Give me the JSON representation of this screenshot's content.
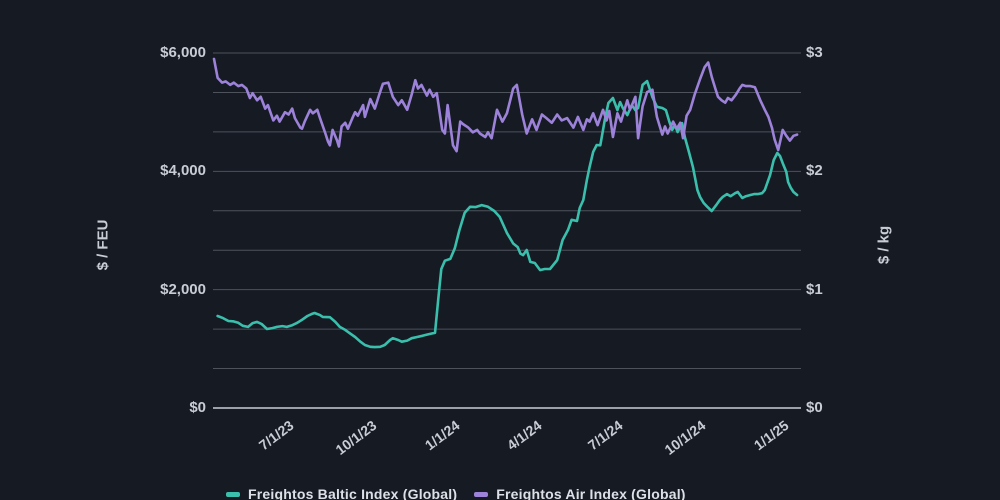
{
  "chart": {
    "background": "#161A23",
    "text_color": "#C8CDD5",
    "gridline_color": "rgba(195,202,212,0.32)",
    "axis_line_color": "#9AA1AA",
    "left_axis": {
      "title": "$ / FEU",
      "max": 6000,
      "ticks": [
        {
          "value": 0,
          "label": "$0"
        },
        {
          "value": 2000,
          "label": "$2,000"
        },
        {
          "value": 4000,
          "label": "$4,000"
        },
        {
          "value": 6000,
          "label": "$6,000"
        }
      ]
    },
    "right_axis": {
      "title": "$ / kg",
      "max": 3,
      "ticks": [
        {
          "value": 0,
          "label": "$0"
        },
        {
          "value": 1,
          "label": "$1"
        },
        {
          "value": 2,
          "label": "$2"
        },
        {
          "value": 3,
          "label": "$3"
        }
      ]
    },
    "x_axis": {
      "start_date": "2023-04-07",
      "end_date": "2025-01-16",
      "span_days": 650,
      "ticks": [
        {
          "day": 85,
          "label": "7/1/23"
        },
        {
          "day": 177,
          "label": "10/1/23"
        },
        {
          "day": 269,
          "label": "1/1/24"
        },
        {
          "day": 360,
          "label": "4/1/24"
        },
        {
          "day": 451,
          "label": "7/1/24"
        },
        {
          "day": 543,
          "label": "10/1/24"
        },
        {
          "day": 635,
          "label": "1/1/25"
        }
      ]
    }
  },
  "chart_data": {
    "type": "line",
    "x_unit": "days_since_2023-04-07",
    "grid": "horizontal-only",
    "legend_position": "bottom",
    "series": [
      {
        "name": "Freightos Baltic Index (Global)",
        "color": "#3BBFAD",
        "axis": "left",
        "unit": "$/FEU",
        "points": [
          [
            4,
            1555
          ],
          [
            10,
            1520
          ],
          [
            16,
            1470
          ],
          [
            21,
            1465
          ],
          [
            27,
            1440
          ],
          [
            32,
            1390
          ],
          [
            38,
            1370
          ],
          [
            43,
            1435
          ],
          [
            48,
            1455
          ],
          [
            53,
            1420
          ],
          [
            59,
            1335
          ],
          [
            65,
            1350
          ],
          [
            70,
            1370
          ],
          [
            76,
            1385
          ],
          [
            81,
            1370
          ],
          [
            87,
            1400
          ],
          [
            92,
            1435
          ],
          [
            98,
            1490
          ],
          [
            104,
            1555
          ],
          [
            109,
            1590
          ],
          [
            112,
            1605
          ],
          [
            118,
            1570
          ],
          [
            121,
            1540
          ],
          [
            129,
            1535
          ],
          [
            135,
            1455
          ],
          [
            140,
            1370
          ],
          [
            146,
            1320
          ],
          [
            151,
            1265
          ],
          [
            157,
            1200
          ],
          [
            163,
            1120
          ],
          [
            168,
            1065
          ],
          [
            174,
            1035
          ],
          [
            179,
            1030
          ],
          [
            185,
            1035
          ],
          [
            190,
            1065
          ],
          [
            196,
            1150
          ],
          [
            199,
            1180
          ],
          [
            205,
            1150
          ],
          [
            209,
            1120
          ],
          [
            215,
            1140
          ],
          [
            220,
            1180
          ],
          [
            226,
            1200
          ],
          [
            232,
            1220
          ],
          [
            237,
            1240
          ],
          [
            243,
            1260
          ],
          [
            246,
            1270
          ],
          [
            250,
            1900
          ],
          [
            253,
            2350
          ],
          [
            257,
            2490
          ],
          [
            263,
            2520
          ],
          [
            268,
            2700
          ],
          [
            273,
            3000
          ],
          [
            279,
            3300
          ],
          [
            285,
            3400
          ],
          [
            291,
            3395
          ],
          [
            298,
            3430
          ],
          [
            305,
            3400
          ],
          [
            312,
            3330
          ],
          [
            318,
            3230
          ],
          [
            326,
            2960
          ],
          [
            333,
            2780
          ],
          [
            338,
            2720
          ],
          [
            341,
            2610
          ],
          [
            344,
            2585
          ],
          [
            348,
            2670
          ],
          [
            352,
            2470
          ],
          [
            357,
            2450
          ],
          [
            363,
            2330
          ],
          [
            368,
            2350
          ],
          [
            374,
            2350
          ],
          [
            382,
            2500
          ],
          [
            385,
            2670
          ],
          [
            388,
            2840
          ],
          [
            394,
            3010
          ],
          [
            398,
            3180
          ],
          [
            404,
            3160
          ],
          [
            407,
            3380
          ],
          [
            411,
            3515
          ],
          [
            415,
            3855
          ],
          [
            418,
            4075
          ],
          [
            422,
            4330
          ],
          [
            426,
            4445
          ],
          [
            430,
            4440
          ],
          [
            435,
            4870
          ],
          [
            439,
            5155
          ],
          [
            444,
            5240
          ],
          [
            449,
            5035
          ],
          [
            452,
            5170
          ],
          [
            455,
            5070
          ],
          [
            460,
            4950
          ],
          [
            465,
            5120
          ],
          [
            469,
            5035
          ],
          [
            472,
            5070
          ],
          [
            477,
            5460
          ],
          [
            482,
            5525
          ],
          [
            488,
            5255
          ],
          [
            493,
            5090
          ],
          [
            499,
            5070
          ],
          [
            503,
            5035
          ],
          [
            507,
            4830
          ],
          [
            510,
            4700
          ],
          [
            513,
            4785
          ],
          [
            516,
            4665
          ],
          [
            521,
            4815
          ],
          [
            524,
            4580
          ],
          [
            528,
            4360
          ],
          [
            533,
            4075
          ],
          [
            538,
            3685
          ],
          [
            541,
            3565
          ],
          [
            545,
            3465
          ],
          [
            549,
            3400
          ],
          [
            554,
            3330
          ],
          [
            559,
            3430
          ],
          [
            563,
            3515
          ],
          [
            566,
            3565
          ],
          [
            571,
            3615
          ],
          [
            575,
            3580
          ],
          [
            580,
            3630
          ],
          [
            583,
            3650
          ],
          [
            588,
            3550
          ],
          [
            592,
            3580
          ],
          [
            597,
            3600
          ],
          [
            601,
            3615
          ],
          [
            605,
            3615
          ],
          [
            610,
            3630
          ],
          [
            613,
            3685
          ],
          [
            619,
            3940
          ],
          [
            623,
            4190
          ],
          [
            627,
            4310
          ],
          [
            630,
            4260
          ],
          [
            633,
            4140
          ],
          [
            637,
            3990
          ],
          [
            639,
            3820
          ],
          [
            642,
            3720
          ],
          [
            645,
            3650
          ],
          [
            649,
            3600
          ]
        ]
      },
      {
        "name": "Freightos Air Index (Global)",
        "color": "#9C82D8",
        "axis": "right",
        "unit": "$/kg",
        "points": [
          [
            0,
            2.95
          ],
          [
            4,
            2.79
          ],
          [
            9,
            2.75
          ],
          [
            13,
            2.76
          ],
          [
            18,
            2.73
          ],
          [
            22,
            2.75
          ],
          [
            27,
            2.72
          ],
          [
            31,
            2.73
          ],
          [
            36,
            2.7
          ],
          [
            40,
            2.62
          ],
          [
            43,
            2.66
          ],
          [
            48,
            2.6
          ],
          [
            52,
            2.63
          ],
          [
            57,
            2.53
          ],
          [
            60,
            2.56
          ],
          [
            66,
            2.43
          ],
          [
            70,
            2.47
          ],
          [
            73,
            2.42
          ],
          [
            79,
            2.5
          ],
          [
            83,
            2.48
          ],
          [
            87,
            2.53
          ],
          [
            90,
            2.45
          ],
          [
            96,
            2.37
          ],
          [
            98,
            2.36
          ],
          [
            101,
            2.42
          ],
          [
            107,
            2.52
          ],
          [
            110,
            2.49
          ],
          [
            115,
            2.52
          ],
          [
            118,
            2.45
          ],
          [
            124,
            2.32
          ],
          [
            127,
            2.25
          ],
          [
            129,
            2.22
          ],
          [
            132,
            2.35
          ],
          [
            137,
            2.26
          ],
          [
            139,
            2.21
          ],
          [
            142,
            2.38
          ],
          [
            146,
            2.41
          ],
          [
            149,
            2.36
          ],
          [
            154,
            2.45
          ],
          [
            157,
            2.5
          ],
          [
            160,
            2.47
          ],
          [
            166,
            2.56
          ],
          [
            168,
            2.46
          ],
          [
            174,
            2.61
          ],
          [
            179,
            2.53
          ],
          [
            184,
            2.65
          ],
          [
            188,
            2.74
          ],
          [
            194,
            2.75
          ],
          [
            199,
            2.63
          ],
          [
            205,
            2.56
          ],
          [
            209,
            2.6
          ],
          [
            215,
            2.52
          ],
          [
            220,
            2.65
          ],
          [
            224,
            2.77
          ],
          [
            227,
            2.7
          ],
          [
            231,
            2.73
          ],
          [
            237,
            2.64
          ],
          [
            240,
            2.69
          ],
          [
            244,
            2.63
          ],
          [
            248,
            2.66
          ],
          [
            254,
            2.35
          ],
          [
            257,
            2.32
          ],
          [
            260,
            2.56
          ],
          [
            266,
            2.22
          ],
          [
            270,
            2.17
          ],
          [
            274,
            2.42
          ],
          [
            277,
            2.4
          ],
          [
            283,
            2.37
          ],
          [
            288,
            2.33
          ],
          [
            293,
            2.35
          ],
          [
            296,
            2.32
          ],
          [
            302,
            2.29
          ],
          [
            305,
            2.33
          ],
          [
            309,
            2.28
          ],
          [
            315,
            2.52
          ],
          [
            321,
            2.42
          ],
          [
            326,
            2.49
          ],
          [
            333,
            2.7
          ],
          [
            337,
            2.73
          ],
          [
            343,
            2.48
          ],
          [
            348,
            2.32
          ],
          [
            354,
            2.44
          ],
          [
            359,
            2.35
          ],
          [
            365,
            2.48
          ],
          [
            370,
            2.45
          ],
          [
            376,
            2.41
          ],
          [
            382,
            2.48
          ],
          [
            387,
            2.43
          ],
          [
            393,
            2.45
          ],
          [
            400,
            2.37
          ],
          [
            405,
            2.46
          ],
          [
            411,
            2.35
          ],
          [
            415,
            2.44
          ],
          [
            418,
            2.42
          ],
          [
            422,
            2.49
          ],
          [
            427,
            2.39
          ],
          [
            433,
            2.52
          ],
          [
            437,
            2.43
          ],
          [
            440,
            2.51
          ],
          [
            444,
            2.29
          ],
          [
            449,
            2.49
          ],
          [
            453,
            2.42
          ],
          [
            460,
            2.6
          ],
          [
            463,
            2.52
          ],
          [
            469,
            2.63
          ],
          [
            472,
            2.28
          ],
          [
            477,
            2.55
          ],
          [
            482,
            2.67
          ],
          [
            488,
            2.69
          ],
          [
            493,
            2.46
          ],
          [
            499,
            2.31
          ],
          [
            502,
            2.38
          ],
          [
            505,
            2.32
          ],
          [
            511,
            2.42
          ],
          [
            515,
            2.36
          ],
          [
            519,
            2.41
          ],
          [
            522,
            2.28
          ],
          [
            526,
            2.47
          ],
          [
            530,
            2.52
          ],
          [
            535,
            2.65
          ],
          [
            541,
            2.78
          ],
          [
            546,
            2.88
          ],
          [
            550,
            2.92
          ],
          [
            554,
            2.8
          ],
          [
            558,
            2.7
          ],
          [
            561,
            2.63
          ],
          [
            565,
            2.6
          ],
          [
            569,
            2.58
          ],
          [
            572,
            2.62
          ],
          [
            576,
            2.6
          ],
          [
            581,
            2.65
          ],
          [
            585,
            2.7
          ],
          [
            588,
            2.73
          ],
          [
            592,
            2.72
          ],
          [
            597,
            2.72
          ],
          [
            602,
            2.71
          ],
          [
            608,
            2.6
          ],
          [
            613,
            2.52
          ],
          [
            617,
            2.46
          ],
          [
            621,
            2.37
          ],
          [
            624,
            2.27
          ],
          [
            628,
            2.18
          ],
          [
            631,
            2.28
          ],
          [
            633,
            2.35
          ],
          [
            637,
            2.3
          ],
          [
            641,
            2.26
          ],
          [
            645,
            2.3
          ],
          [
            649,
            2.31
          ]
        ]
      }
    ]
  },
  "legend": {
    "items": [
      {
        "label": "Freightos Baltic Index (Global)",
        "color": "#3BBFAD"
      },
      {
        "label": "Freightos Air Index (Global)",
        "color": "#9C82D8"
      }
    ]
  }
}
